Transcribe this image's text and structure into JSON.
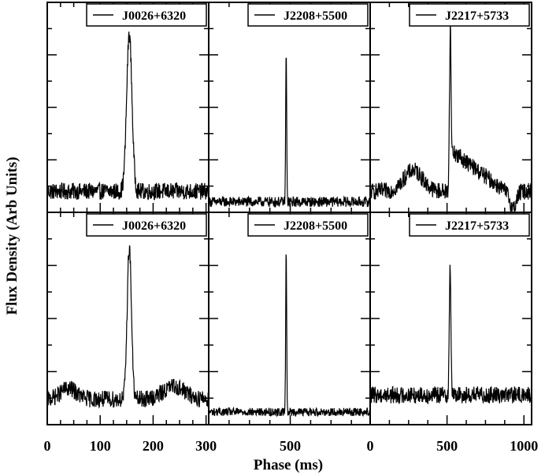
{
  "chart_data": {
    "type": "line",
    "xlabel": "Phase (ms)",
    "ylabel": "Flux Density (Arb Units)",
    "grid": false,
    "legend_position": "top-right",
    "columns": [
      {
        "xlim": [
          0,
          305
        ],
        "ticks": [
          0,
          100,
          200,
          300
        ],
        "tick_labels": [
          "0",
          "100",
          "200",
          "300"
        ]
      },
      {
        "xlim": [
          0,
          990
        ],
        "ticks": [
          500
        ],
        "tick_labels": [
          "500"
        ]
      },
      {
        "xlim": [
          0,
          1050
        ],
        "ticks": [
          0,
          500,
          1000
        ],
        "tick_labels": [
          "0",
          "500",
          "1000"
        ]
      }
    ],
    "panels": [
      {
        "row": 0,
        "col": 0,
        "series_name": "J0026+6320",
        "period_ms": 305,
        "peak_center": 155,
        "peak_width": 10,
        "peak_height": 0.75,
        "baseline": 0.1,
        "noise": 0.025,
        "features": []
      },
      {
        "row": 0,
        "col": 1,
        "series_name": "J2208+5500",
        "period_ms": 990,
        "peak_center": 475,
        "peak_width": 6,
        "peak_height": 0.72,
        "baseline": 0.05,
        "noise": 0.015,
        "features": []
      },
      {
        "row": 0,
        "col": 2,
        "series_name": "J2217+5733",
        "period_ms": 1050,
        "peak_center": 520,
        "peak_width": 10,
        "peak_height": 0.65,
        "baseline": 0.1,
        "noise": 0.025,
        "features": [
          {
            "type": "bump",
            "center": 280,
            "width": 120,
            "height": 0.1
          },
          {
            "type": "plateau",
            "start": 520,
            "end": 880,
            "height": 0.22
          },
          {
            "type": "dip",
            "center": 930,
            "width": 40,
            "height": -0.08
          }
        ]
      },
      {
        "row": 1,
        "col": 0,
        "series_name": "J0026+6320",
        "period_ms": 305,
        "peak_center": 155,
        "peak_width": 8,
        "peak_height": 0.72,
        "baseline": 0.12,
        "noise": 0.025,
        "features": [
          {
            "type": "bump",
            "center": 40,
            "width": 30,
            "height": 0.05
          },
          {
            "type": "bump",
            "center": 240,
            "width": 40,
            "height": 0.06
          }
        ]
      },
      {
        "row": 1,
        "col": 1,
        "series_name": "J2208+5500",
        "period_ms": 990,
        "peak_center": 475,
        "peak_width": 6,
        "peak_height": 0.77,
        "baseline": 0.06,
        "noise": 0.012,
        "features": []
      },
      {
        "row": 1,
        "col": 2,
        "series_name": "J2217+5733",
        "period_ms": 1050,
        "peak_center": 520,
        "peak_width": 10,
        "peak_height": 0.62,
        "baseline": 0.14,
        "noise": 0.025,
        "features": []
      }
    ]
  }
}
